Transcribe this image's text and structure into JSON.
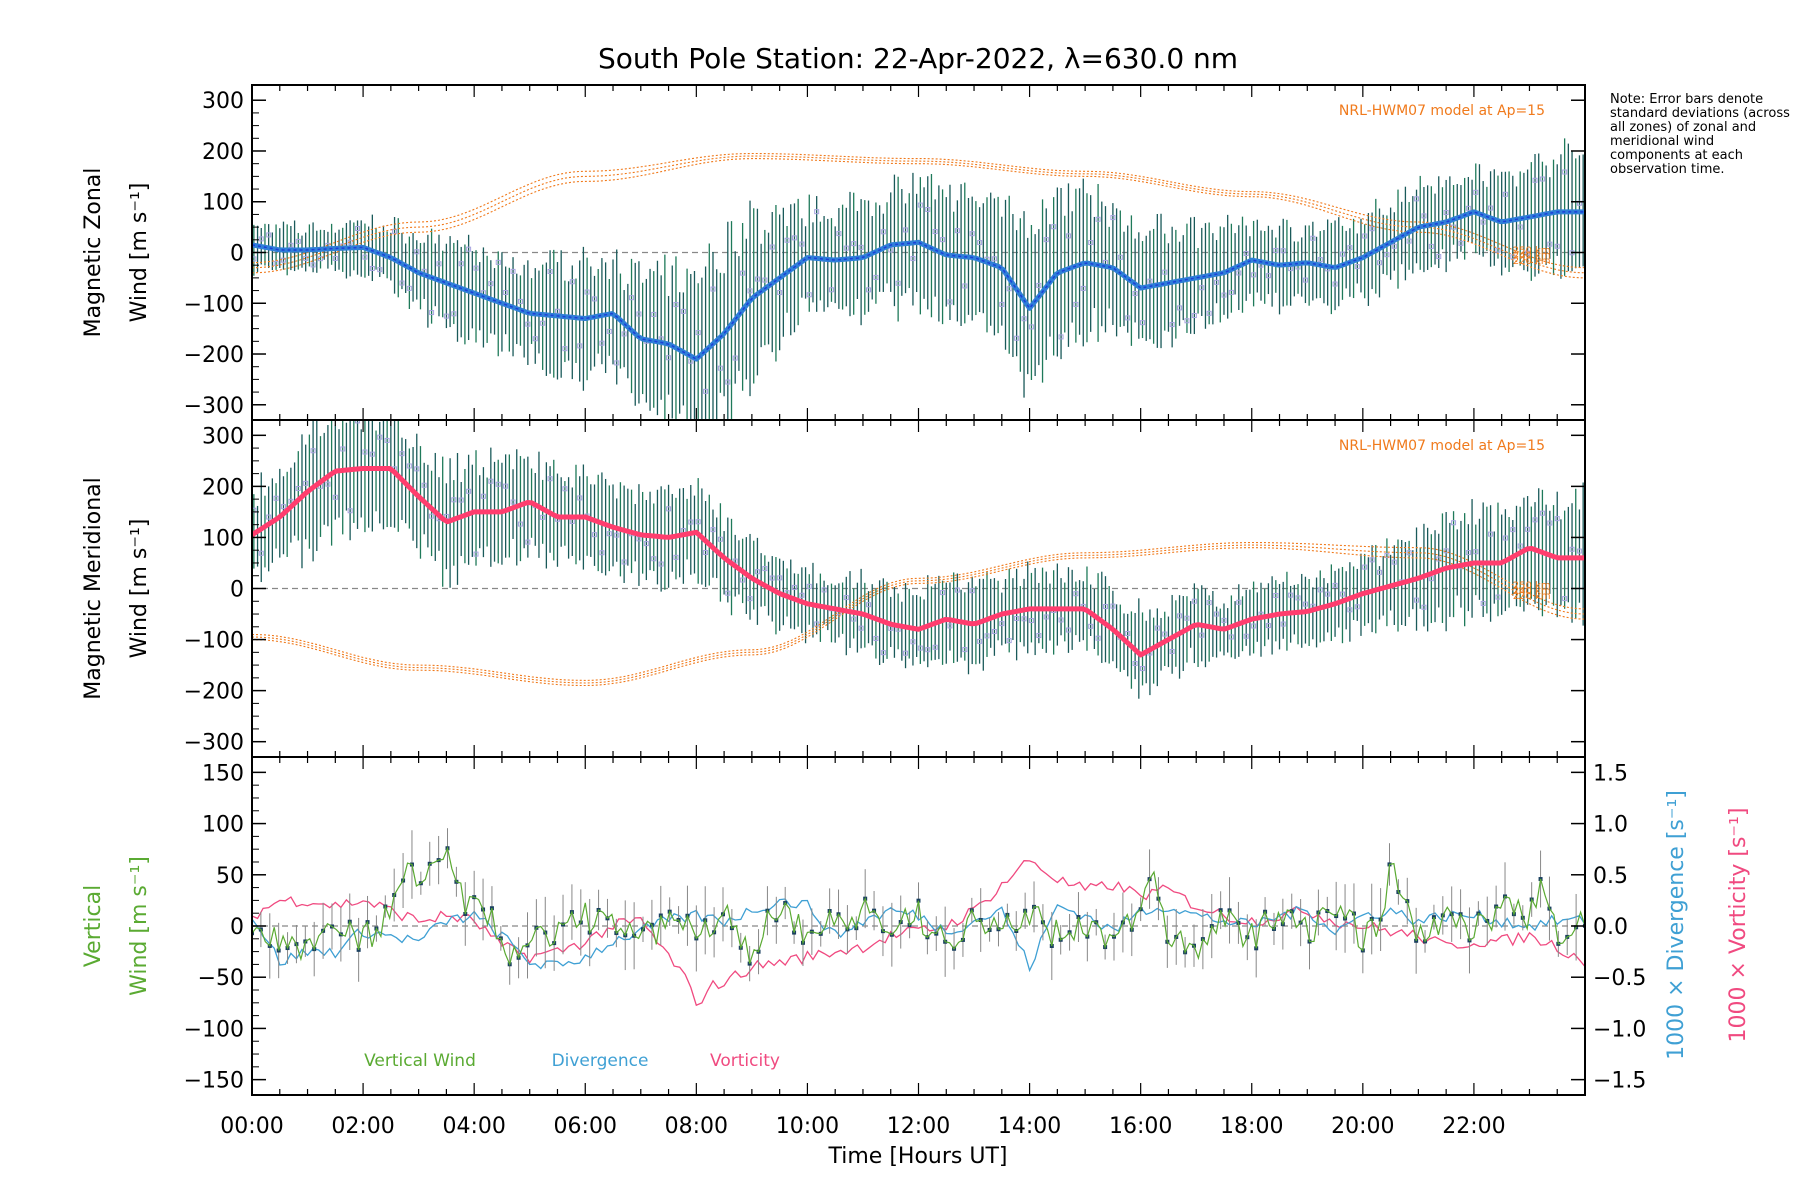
{
  "chart_data": {
    "type": "line",
    "title": "South Pole Station: 22-Apr-2022, λ=630.0 nm",
    "xlabel": "Time [Hours UT]",
    "xlim": [
      0,
      24
    ],
    "x_ticks": [
      "00:00",
      "02:00",
      "04:00",
      "06:00",
      "08:00",
      "10:00",
      "12:00",
      "14:00",
      "16:00",
      "18:00",
      "20:00",
      "22:00"
    ],
    "note": "Note: Error bars denote standard deviations (across all zones) of zonal and meridional wind components at each observation time.",
    "colors": {
      "zonal": "#2f7fd8",
      "zonal_dark": "#1c3fd6",
      "meridional": "#ff3d6e",
      "model": "#f07a1c",
      "errorbar": "#1a5a5a",
      "scatter": "#a8a4e0",
      "vertical": "#5aaa32",
      "divergence": "#3fa0d4",
      "vorticity": "#f04a80"
    },
    "panels": [
      {
        "id": "zonal",
        "ylabel": [
          "Magnetic Zonal",
          "Wind [m s⁻¹]"
        ],
        "ylim": [
          -330,
          330
        ],
        "yticks": [
          -300,
          -200,
          -100,
          0,
          100,
          200,
          300
        ],
        "model_label": "NRL-HWM07 model at Ap=15",
        "model_alt_labels": [
          "250 km",
          "240 km",
          "220 km"
        ],
        "series": {
          "x": [
            0,
            0.5,
            1,
            1.5,
            2,
            2.5,
            3,
            3.5,
            4,
            4.5,
            5,
            5.5,
            6,
            6.5,
            7,
            7.5,
            8,
            8.5,
            9,
            9.5,
            10,
            10.5,
            11,
            11.5,
            12,
            12.5,
            13,
            13.5,
            14,
            14.5,
            15,
            15.5,
            16,
            16.5,
            17,
            17.5,
            18,
            18.5,
            19,
            19.5,
            20,
            20.5,
            21,
            21.5,
            22,
            22.5,
            23,
            23.5,
            24
          ],
          "y": [
            15,
            5,
            5,
            8,
            10,
            -10,
            -40,
            -60,
            -80,
            -100,
            -120,
            -125,
            -130,
            -120,
            -170,
            -180,
            -210,
            -160,
            -90,
            -50,
            -10,
            -15,
            -10,
            15,
            20,
            -5,
            -10,
            -30,
            -110,
            -40,
            -20,
            -30,
            -70,
            -60,
            -50,
            -40,
            -15,
            -25,
            -20,
            -30,
            -10,
            20,
            50,
            60,
            80,
            60,
            70,
            80,
            80
          ],
          "spread": [
            40,
            40,
            40,
            40,
            50,
            60,
            70,
            80,
            80,
            80,
            90,
            100,
            110,
            100,
            120,
            130,
            160,
            170,
            150,
            120,
            90,
            100,
            110,
            110,
            110,
            110,
            120,
            130,
            180,
            130,
            130,
            110,
            110,
            100,
            90,
            80,
            70,
            70,
            70,
            70,
            70,
            80,
            90,
            80,
            80,
            80,
            100,
            110,
            110
          ]
        },
        "model": [
          {
            "label": "250 km",
            "x": [
              0,
              3,
              6,
              9,
              12,
              15,
              18,
              21,
              24
            ],
            "y": [
              -20,
              60,
              160,
              195,
              185,
              160,
              120,
              60,
              -30
            ]
          },
          {
            "label": "240 km",
            "x": [
              0,
              3,
              6,
              9,
              12,
              15,
              18,
              21,
              24
            ],
            "y": [
              -30,
              50,
              150,
              190,
              180,
              155,
              115,
              50,
              -40
            ]
          },
          {
            "label": "220 km",
            "x": [
              0,
              3,
              6,
              9,
              12,
              15,
              18,
              21,
              24
            ],
            "y": [
              -40,
              40,
              140,
              185,
              175,
              150,
              110,
              40,
              -50
            ]
          }
        ]
      },
      {
        "id": "meridional",
        "ylabel": [
          "Magnetic Meridional",
          "Wind [m s⁻¹]"
        ],
        "ylim": [
          -330,
          330
        ],
        "yticks": [
          -300,
          -200,
          -100,
          0,
          100,
          200,
          300
        ],
        "model_label": "NRL-HWM07 model at Ap=15",
        "model_alt_labels": [
          "250 km",
          "240 km",
          "220 km"
        ],
        "series": {
          "x": [
            0,
            0.5,
            1,
            1.5,
            2,
            2.5,
            3,
            3.5,
            4,
            4.5,
            5,
            5.5,
            6,
            6.5,
            7,
            7.5,
            8,
            8.5,
            9,
            9.5,
            10,
            10.5,
            11,
            11.5,
            12,
            12.5,
            13,
            13.5,
            14,
            14.5,
            15,
            15.5,
            16,
            16.5,
            17,
            17.5,
            18,
            18.5,
            19,
            19.5,
            20,
            20.5,
            21,
            21.5,
            22,
            22.5,
            23,
            23.5,
            24
          ],
          "y": [
            105,
            140,
            190,
            230,
            235,
            235,
            180,
            130,
            150,
            150,
            170,
            140,
            140,
            120,
            105,
            100,
            110,
            60,
            20,
            -10,
            -30,
            -40,
            -50,
            -70,
            -80,
            -60,
            -70,
            -50,
            -40,
            -40,
            -40,
            -80,
            -130,
            -100,
            -70,
            -80,
            -60,
            -50,
            -45,
            -30,
            -10,
            5,
            20,
            40,
            50,
            50,
            80,
            60,
            60
          ],
          "spread": [
            80,
            90,
            110,
            120,
            110,
            100,
            100,
            100,
            100,
            90,
            90,
            80,
            80,
            80,
            80,
            80,
            80,
            80,
            70,
            60,
            60,
            60,
            60,
            70,
            70,
            70,
            70,
            70,
            80,
            70,
            70,
            70,
            80,
            70,
            60,
            60,
            60,
            60,
            60,
            60,
            70,
            70,
            80,
            90,
            90,
            90,
            100,
            110,
            110
          ]
        },
        "model": [
          {
            "label": "250 km",
            "x": [
              0,
              3,
              6,
              9,
              12,
              15,
              18,
              21,
              24
            ],
            "y": [
              -90,
              -150,
              -180,
              -120,
              20,
              70,
              90,
              80,
              -40
            ]
          },
          {
            "label": "240 km",
            "x": [
              0,
              3,
              6,
              9,
              12,
              15,
              18,
              21,
              24
            ],
            "y": [
              -95,
              -155,
              -185,
              -125,
              15,
              65,
              85,
              70,
              -50
            ]
          },
          {
            "label": "220 km",
            "x": [
              0,
              3,
              6,
              9,
              12,
              15,
              18,
              21,
              24
            ],
            "y": [
              -100,
              -160,
              -190,
              -130,
              10,
              60,
              80,
              60,
              -60
            ]
          }
        ]
      },
      {
        "id": "vertical",
        "ylabel": [
          "Vertical",
          "Wind [m s⁻¹]"
        ],
        "y2label": "1000 × Divergence [s⁻¹]",
        "y3label": "1000 × Vorticity [s⁻¹]",
        "ylim": [
          -165,
          165
        ],
        "yticks": [
          -150,
          -100,
          -50,
          0,
          50,
          100,
          150
        ],
        "y2lim": [
          -1.65,
          1.65
        ],
        "y2ticks": [
          -1.5,
          -1.0,
          -0.5,
          0.0,
          0.5,
          1.0,
          1.5
        ],
        "y2ticklabels": [
          "−1.5",
          "−1.0",
          "−0.5",
          "0.0",
          "0.5",
          "1.0",
          "1.5"
        ],
        "legend": [
          "Vertical Wind",
          "Divergence",
          "Vorticity"
        ],
        "vertical": {
          "x": [
            0,
            0.5,
            1,
            1.5,
            2,
            2.5,
            2.8,
            3.1,
            3.4,
            3.7,
            4,
            4.3,
            4.6,
            5,
            5.5,
            6,
            6.5,
            7,
            7.5,
            8,
            8.5,
            9,
            9.5,
            10,
            10.5,
            11,
            11.5,
            12,
            12.5,
            13,
            13.5,
            14,
            14.5,
            15,
            15.5,
            16,
            16.2,
            16.5,
            17,
            17.5,
            18,
            18.5,
            19,
            19.5,
            20,
            20.3,
            20.5,
            21,
            21.5,
            22,
            22.5,
            23,
            23.2,
            23.5,
            24
          ],
          "y": [
            0,
            -15,
            -25,
            -5,
            -15,
            10,
            50,
            40,
            80,
            35,
            15,
            5,
            -30,
            -15,
            -5,
            10,
            0,
            -15,
            5,
            -5,
            15,
            -25,
            20,
            -10,
            5,
            15,
            -5,
            10,
            -15,
            5,
            0,
            15,
            -10,
            5,
            -15,
            10,
            55,
            -10,
            -20,
            5,
            -10,
            10,
            -5,
            15,
            -10,
            5,
            55,
            -5,
            10,
            -5,
            15,
            10,
            40,
            -5,
            5
          ]
        },
        "divergence": {
          "x": [
            0,
            0.5,
            1,
            1.5,
            2,
            2.5,
            3,
            3.5,
            4,
            4.5,
            5,
            5.5,
            6,
            6.5,
            7,
            7.5,
            8,
            8.5,
            9,
            9.5,
            10,
            10.5,
            11,
            11.5,
            12,
            12.5,
            13,
            13.5,
            14,
            14.5,
            15,
            15.5,
            16,
            16.5,
            17,
            17.5,
            18,
            18.5,
            19,
            19.5,
            20,
            20.5,
            21,
            21.5,
            22,
            22.5,
            23,
            23.5,
            24
          ],
          "y": [
            0.1,
            -0.35,
            -0.25,
            -0.25,
            -0.05,
            -0.1,
            -0.15,
            0.05,
            0.1,
            -0.1,
            -0.35,
            -0.4,
            -0.3,
            -0.15,
            -0.05,
            0.05,
            0.1,
            0.05,
            0.15,
            0.25,
            0.2,
            -0.1,
            0.05,
            0.15,
            0.1,
            -0.05,
            0.05,
            0.15,
            -0.4,
            0.2,
            0.1,
            -0.05,
            0.15,
            0.2,
            0.1,
            0.05,
            0.0,
            0.1,
            0.15,
            -0.05,
            0.1,
            0.15,
            0.05,
            0.1,
            0.1,
            0.05,
            0.0,
            0.05,
            0.05
          ]
        },
        "vorticity": {
          "x": [
            0,
            0.5,
            1,
            1.5,
            2,
            2.5,
            3,
            3.5,
            4,
            4.5,
            5,
            5.5,
            6,
            6.5,
            7,
            7.5,
            7.8,
            8,
            8.2,
            8.5,
            9,
            9.5,
            10,
            10.5,
            11,
            11.5,
            12,
            12.5,
            13,
            13.5,
            14,
            14.5,
            15,
            15.5,
            16,
            16.5,
            17,
            17.5,
            18,
            18.5,
            19,
            19.5,
            20,
            20.5,
            21,
            21.5,
            22,
            22.5,
            23,
            23.5,
            24
          ],
          "y": [
            0.1,
            0.25,
            0.25,
            0.2,
            0.25,
            0.15,
            0.05,
            0.1,
            0.05,
            -0.2,
            -0.3,
            -0.25,
            -0.15,
            0.0,
            0.05,
            -0.3,
            -0.5,
            -0.8,
            -0.6,
            -0.55,
            -0.4,
            -0.35,
            -0.3,
            -0.25,
            -0.2,
            -0.1,
            -0.05,
            0.0,
            0.15,
            0.4,
            0.65,
            0.45,
            0.35,
            0.4,
            0.3,
            0.35,
            0.2,
            0.1,
            0.05,
            0.1,
            0.15,
            0.05,
            0.0,
            -0.05,
            -0.1,
            -0.2,
            -0.15,
            -0.15,
            -0.1,
            -0.2,
            -0.35
          ]
        }
      }
    ]
  }
}
